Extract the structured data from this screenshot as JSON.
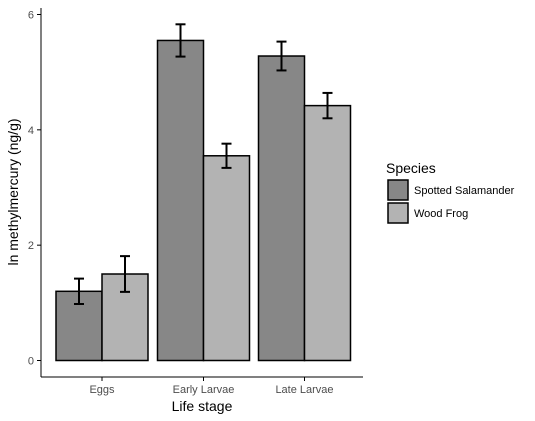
{
  "chart_data": {
    "type": "bar",
    "categories": [
      "Eggs",
      "Early Larvae",
      "Late Larvae"
    ],
    "series": [
      {
        "name": "Spotted Salamander",
        "values": [
          1.2,
          5.55,
          5.28
        ],
        "error": [
          0.22,
          0.28,
          0.25
        ],
        "color": "#878787"
      },
      {
        "name": "Wood Frog",
        "values": [
          1.5,
          3.55,
          4.42
        ],
        "error": [
          0.31,
          0.21,
          0.22
        ],
        "color": "#b3b3b3"
      }
    ],
    "xlabel": "Life stage",
    "ylabel": "ln methylmercury (ng/g)",
    "ylim": [
      0,
      6
    ],
    "yticks": [
      0,
      2,
      4,
      6
    ],
    "ytick_labels": [
      "0",
      "2",
      "4",
      "6"
    ],
    "legend_title": "Species",
    "legend_position": "right",
    "grid": false
  }
}
